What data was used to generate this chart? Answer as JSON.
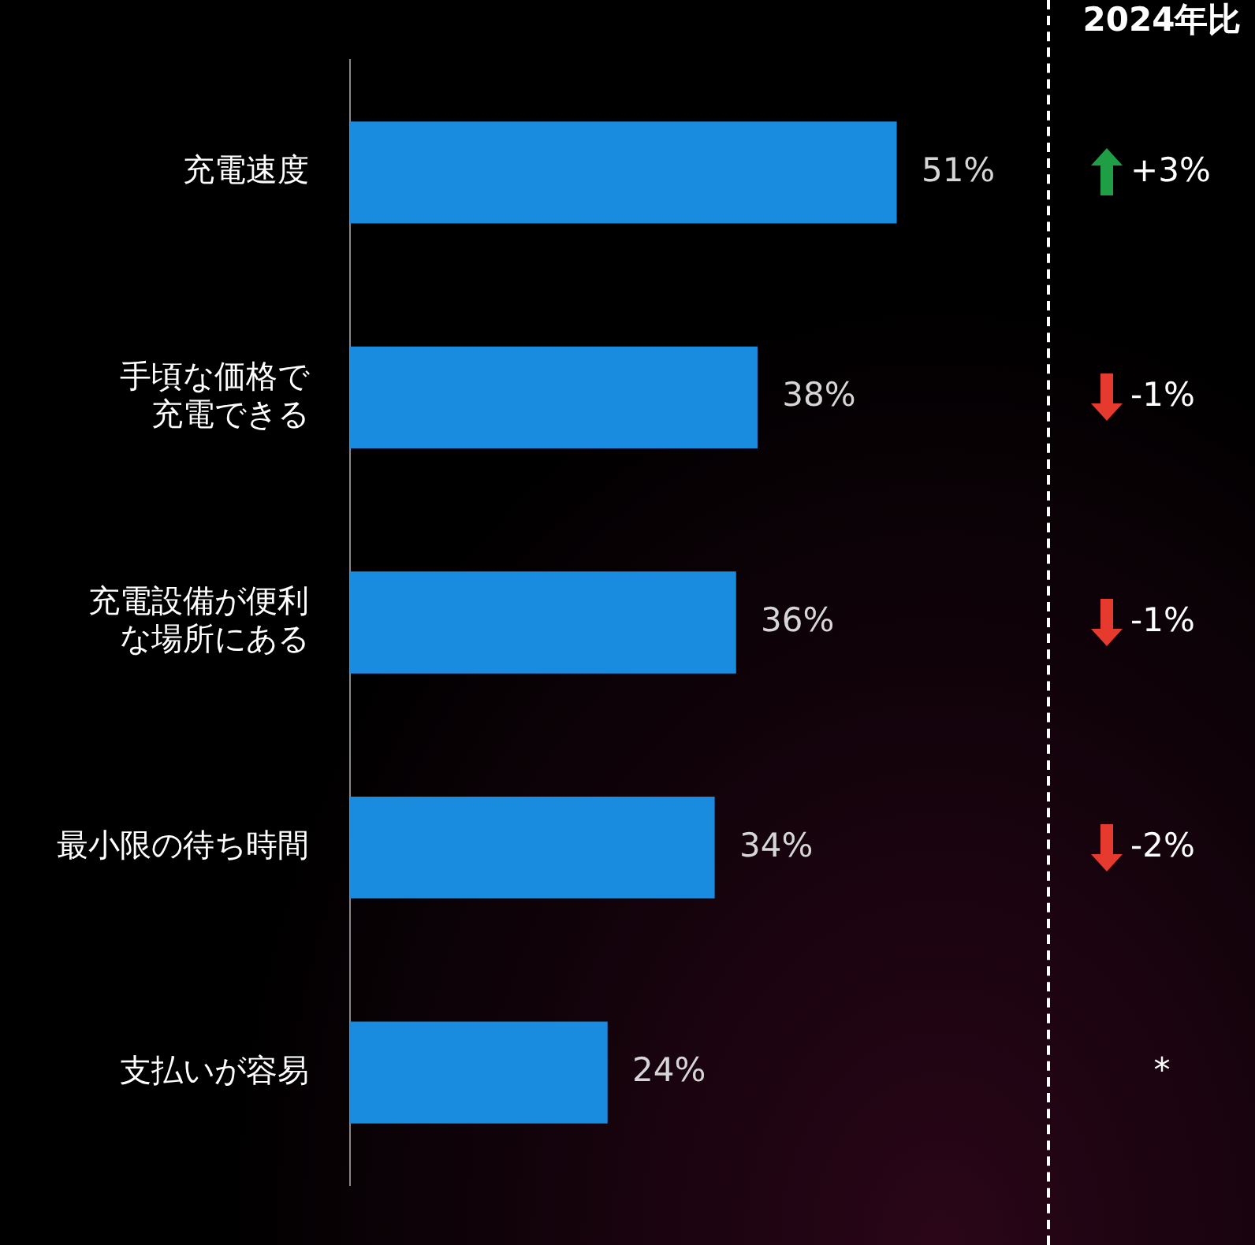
{
  "chart_data": {
    "type": "bar",
    "orientation": "horizontal",
    "categories": [
      "充電速度",
      "手頃な価格で充電できる",
      "充電設備が便利な場所にある",
      "最小限の待ち時間",
      "支払いが容易"
    ],
    "values": [
      51,
      38,
      36,
      34,
      24
    ],
    "value_labels": [
      "51%",
      "38%",
      "36%",
      "34%",
      "24%"
    ],
    "color": "#1a8ce0",
    "legend": false,
    "tick_labels": "y",
    "annotations": [
      "2024年比",
      "+3%",
      "-1%",
      "-1%",
      "-2%",
      "*"
    ]
  }
}
